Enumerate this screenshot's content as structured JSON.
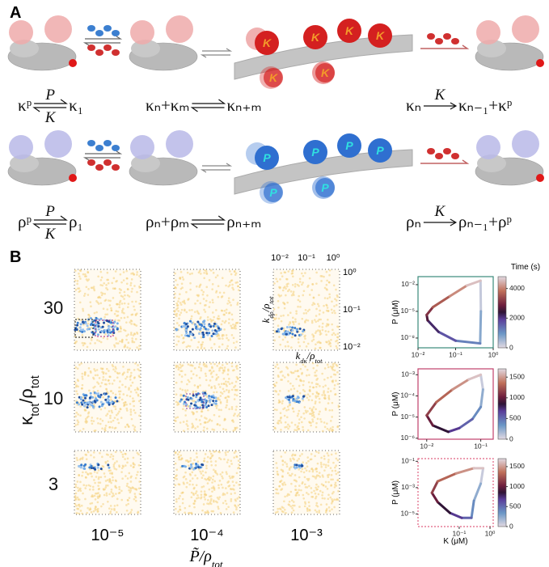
{
  "panel_a": {
    "label": "A",
    "protein_labels": [
      "K",
      "P"
    ],
    "equations": [
      [
        {
          "kind": "equilibrium",
          "left": "κᵖ",
          "top": "P",
          "bottom": "K",
          "right": "κ₁"
        },
        {
          "kind": "equilibrium",
          "left": "κₙ+κₘ",
          "right": "κₙ₊ₘ"
        },
        {
          "kind": "forward",
          "left": "κₙ",
          "top": "K",
          "right": "κₙ₋₁+κᵖ"
        }
      ],
      [
        {
          "kind": "equilibrium",
          "left": "ρᵖ",
          "top": "P",
          "bottom": "K",
          "right": "ρ₁"
        },
        {
          "kind": "equilibrium",
          "left": "ρₙ+ρₘ",
          "right": "ρₙ₊ₘ"
        },
        {
          "kind": "forward",
          "left": "ρₙ",
          "top": "K",
          "right": "ρₙ₋₁+ρᵖ"
        }
      ]
    ]
  },
  "panel_b": {
    "label": "B",
    "row_labels": [
      "30",
      "10",
      "3"
    ],
    "col_labels": [
      "10⁻⁵",
      "10⁻⁴",
      "10⁻³"
    ],
    "y_title": [
      [
        "κ",
        "tot"
      ],
      [
        "/ρ",
        "tot"
      ]
    ],
    "x_title": [
      [
        "P̃/ρ",
        "tot"
      ]
    ],
    "inset_top_ticks": [
      "10⁻²",
      "10⁻¹",
      "10⁰"
    ],
    "inset_right_ticks": [
      "10⁰",
      "10⁻¹",
      "10⁻²"
    ],
    "inset_x_title": [
      [
        "k",
        "dκ"
      ],
      [
        "/ρ",
        "tot"
      ]
    ],
    "inset_y_title": [
      [
        "k",
        "dρ"
      ],
      [
        "/ρ",
        "tot"
      ]
    ]
  },
  "chart_data": [
    {
      "type": "line",
      "ylabel": "P (μM)",
      "log": true,
      "frame_color": "#3a8a7a",
      "dashed_frame": false,
      "x": [
        0.46,
        0.47,
        0.45,
        0.1,
        0.035,
        0.018,
        0.017,
        0.025,
        0.07,
        0.2,
        0.46
      ],
      "y": [
        0.028,
        1e-05,
        2.5e-09,
        5e-09,
        5e-08,
        1e-06,
        4e-06,
        3e-05,
        0.0005,
        0.008,
        0.028
      ],
      "xlim": [
        0.01,
        1
      ],
      "ylim": [
        8e-10,
        0.08
      ],
      "xticks": [
        {
          "value": 0.01,
          "label": "10⁻²"
        },
        {
          "value": 0.1,
          "label": "10⁻¹"
        },
        {
          "value": 1,
          "label": "10⁰"
        }
      ],
      "yticks": [
        {
          "value": 0.01,
          "label": "10⁻²"
        },
        {
          "value": 1e-05,
          "label": "10⁻⁵"
        },
        {
          "value": 1e-08,
          "label": "10⁻⁸"
        }
      ],
      "colorbar": {
        "title": "Time (s)",
        "lim": [
          0,
          4800
        ],
        "ticks": [
          0,
          2000,
          4000
        ]
      }
    },
    {
      "type": "line",
      "ylabel": "P (μM)",
      "log": true,
      "frame_color": "#c0406a",
      "dashed_frame": false,
      "x": [
        0.1,
        0.11,
        0.1,
        0.07,
        0.04,
        0.025,
        0.013,
        0.01,
        0.015,
        0.03,
        0.06,
        0.1
      ],
      "y": [
        0.001,
        0.0002,
        3e-05,
        8e-06,
        3e-06,
        2e-06,
        4e-06,
        1.2e-05,
        5e-05,
        0.0002,
        0.0006,
        0.001
      ],
      "xlim": [
        0.0069,
        0.17
      ],
      "ylim": [
        9e-07,
        0.0019
      ],
      "xticks": [
        {
          "value": 0.01,
          "label": "10⁻²"
        },
        {
          "value": 0.1,
          "label": "10⁻¹"
        }
      ],
      "yticks": [
        {
          "value": 0.001,
          "label": "10⁻³"
        },
        {
          "value": 0.0001,
          "label": "10⁻⁴"
        },
        {
          "value": 1e-05,
          "label": "10⁻⁵"
        },
        {
          "value": 1e-06,
          "label": "10⁻⁶"
        }
      ],
      "colorbar": {
        "lim": [
          0,
          1700
        ],
        "ticks": [
          0,
          500,
          1000,
          1500
        ]
      }
    },
    {
      "type": "line",
      "ylabel": "P (μM)",
      "xlabel": "K (μM)",
      "log": true,
      "frame_color": "#e06080",
      "dashed_frame": true,
      "x": [
        0.6,
        0.5,
        0.3,
        0.25,
        0.12,
        0.05,
        0.02,
        0.013,
        0.02,
        0.08,
        0.3,
        0.6
      ],
      "y": [
        0.03,
        0.002,
        0.0001,
        5e-06,
        5e-06,
        1.2e-05,
        8e-05,
        0.0004,
        0.003,
        0.012,
        0.03,
        0.03
      ],
      "xlim": [
        0.0046,
        1.27
      ],
      "ylim": [
        1.1e-06,
        0.16
      ],
      "xticks": [
        {
          "value": 0.1,
          "label": "10⁻¹"
        },
        {
          "value": 1,
          "label": "10⁰"
        }
      ],
      "yticks": [
        {
          "value": 0.1,
          "label": "10⁻¹"
        },
        {
          "value": 0.001,
          "label": "10⁻³"
        },
        {
          "value": 1e-05,
          "label": "10⁻⁵"
        }
      ],
      "colorbar": {
        "lim": [
          0,
          1700
        ],
        "ticks": [
          0,
          500,
          1000,
          1500
        ]
      }
    }
  ]
}
